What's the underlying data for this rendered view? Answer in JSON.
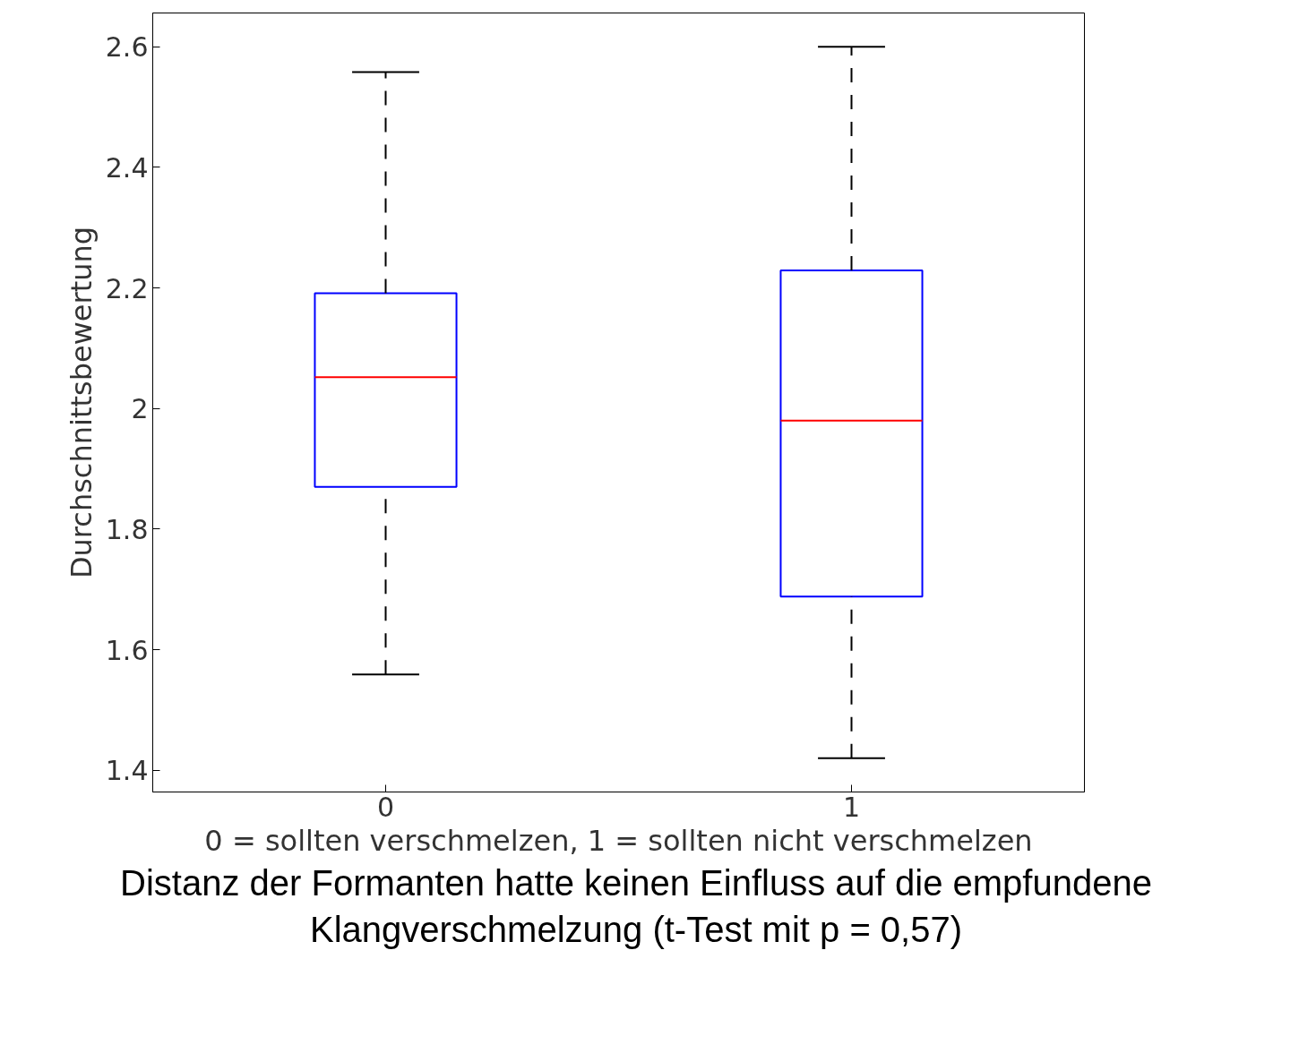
{
  "chart_data": {
    "type": "box",
    "categories": [
      "0",
      "1"
    ],
    "boxes": [
      {
        "low": 1.559,
        "q1": 1.87,
        "median": 2.052,
        "q3": 2.191,
        "high": 2.558
      },
      {
        "low": 1.42,
        "q1": 1.688,
        "median": 1.98,
        "q3": 2.229,
        "high": 2.6
      }
    ],
    "ylim": [
      1.364,
      2.656
    ],
    "yticks": [
      1.4,
      1.6,
      1.8,
      2,
      2.2,
      2.4,
      2.6
    ],
    "xlabel": "0 = sollten verschmelzen, 1 = sollten nicht verschmelzen",
    "ylabel": "Durchschnittsbewertung",
    "annotations": [
      "Distanz der Formanten hatte keinen Einfluss auf die empfundene Klangverschmelzung (t-Test mit p = 0,57)"
    ],
    "grid": false
  }
}
